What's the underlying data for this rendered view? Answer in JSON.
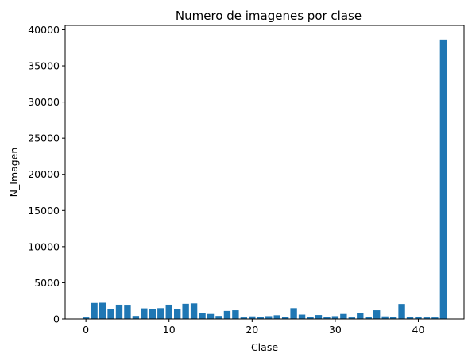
{
  "chart_data": {
    "type": "bar",
    "title": "Numero de imagenes por clase",
    "xlabel": "Clase",
    "ylabel": "N_Imagen",
    "x": [
      0,
      1,
      2,
      3,
      4,
      5,
      6,
      7,
      8,
      9,
      10,
      11,
      12,
      13,
      14,
      15,
      16,
      17,
      18,
      19,
      20,
      21,
      22,
      23,
      24,
      25,
      26,
      27,
      28,
      29,
      30,
      31,
      32,
      33,
      34,
      35,
      36,
      37,
      38,
      39,
      40,
      41,
      42,
      43
    ],
    "values": [
      210,
      2220,
      2250,
      1410,
      1980,
      1860,
      420,
      1470,
      1410,
      1500,
      1980,
      1320,
      2100,
      2160,
      780,
      690,
      420,
      1110,
      1200,
      210,
      360,
      240,
      390,
      510,
      270,
      1500,
      600,
      240,
      540,
      240,
      390,
      690,
      210,
      780,
      300,
      1200,
      360,
      240,
      2070,
      300,
      330,
      210,
      210,
      38640
    ],
    "xlim": [
      -2.5,
      45.5
    ],
    "ylim": [
      0,
      40600
    ],
    "xticks": [
      0,
      10,
      20,
      30,
      40
    ],
    "yticks": [
      0,
      5000,
      10000,
      15000,
      20000,
      25000,
      30000,
      35000,
      40000
    ],
    "bar_color": "#1f77b4",
    "grid": false,
    "legend": "none"
  }
}
